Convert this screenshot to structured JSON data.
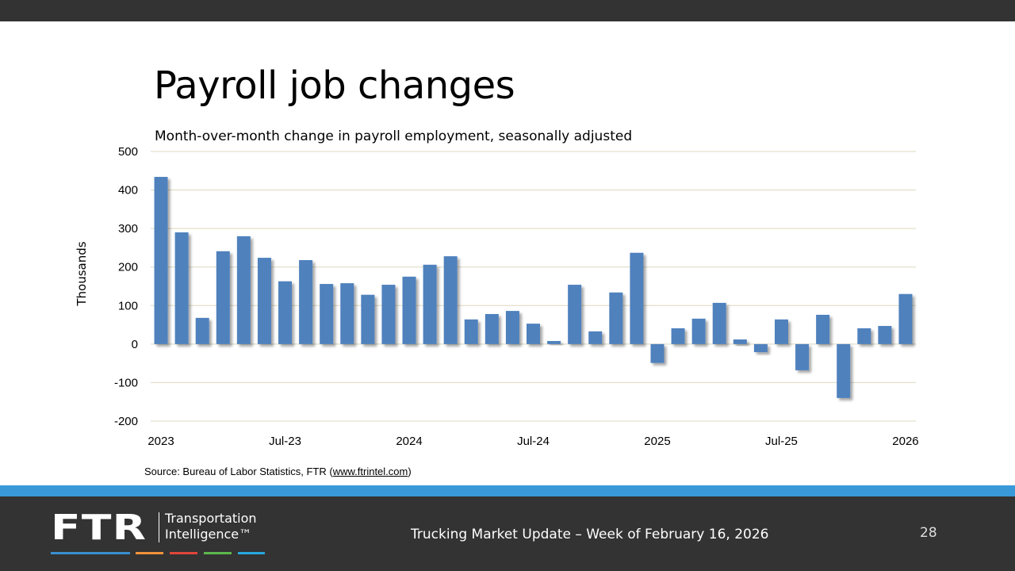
{
  "slide": {
    "title": "Payroll job changes",
    "source_prefix": "Source: Bureau of Labor Statistics, FTR (",
    "source_link": "www.ftrintel.com",
    "source_suffix": ")",
    "footer_text": "Trucking Market Update – Week of February 16, 2026",
    "page_number": "28",
    "logo": {
      "mark": "FTR",
      "line1": "Transportation",
      "line2": "Intelligence™",
      "stripe_colors": [
        "#3a8fd0",
        "#f0923a",
        "#e0463a",
        "#5cb84c",
        "#27a8de"
      ]
    }
  },
  "colors": {
    "bar": "#4f81bd",
    "grid": "#ddd8bf",
    "header": "#333333",
    "accent": "#3a9ad9"
  },
  "chart_data": {
    "type": "bar",
    "subtitle": "Month-over-month change in payroll employment, seasonally adjusted",
    "ylabel": "Thousands",
    "ylim": [
      -200,
      500
    ],
    "yticks": [
      500,
      400,
      300,
      200,
      100,
      0,
      -100,
      -200
    ],
    "grid": true,
    "categories": [
      "Jan-23",
      "Feb-23",
      "Mar-23",
      "Apr-23",
      "May-23",
      "Jun-23",
      "Jul-23",
      "Aug-23",
      "Sep-23",
      "Oct-23",
      "Nov-23",
      "Dec-23",
      "Jan-24",
      "Feb-24",
      "Mar-24",
      "Apr-24",
      "May-24",
      "Jun-24",
      "Jul-24",
      "Aug-24",
      "Sep-24",
      "Oct-24",
      "Nov-24",
      "Dec-24",
      "Jan-25",
      "Feb-25",
      "Mar-25",
      "Apr-25",
      "May-25",
      "Jun-25",
      "Jul-25",
      "Aug-25",
      "Sep-25",
      "Oct-25",
      "Nov-25",
      "Dec-25",
      "Jan-26"
    ],
    "xtick_labels": [
      {
        "index": 0,
        "label": "2023"
      },
      {
        "index": 6,
        "label": "Jul-23"
      },
      {
        "index": 12,
        "label": "2024"
      },
      {
        "index": 18,
        "label": "Jul-24"
      },
      {
        "index": 24,
        "label": "2025"
      },
      {
        "index": 30,
        "label": "Jul-25"
      },
      {
        "index": 36,
        "label": "2026"
      }
    ],
    "values": [
      434,
      290,
      68,
      241,
      280,
      224,
      163,
      218,
      156,
      158,
      128,
      154,
      175,
      206,
      228,
      64,
      78,
      86,
      53,
      8,
      154,
      33,
      134,
      237,
      -49,
      41,
      66,
      107,
      12,
      -21,
      64,
      -68,
      76,
      -140,
      41,
      47,
      130
    ]
  }
}
